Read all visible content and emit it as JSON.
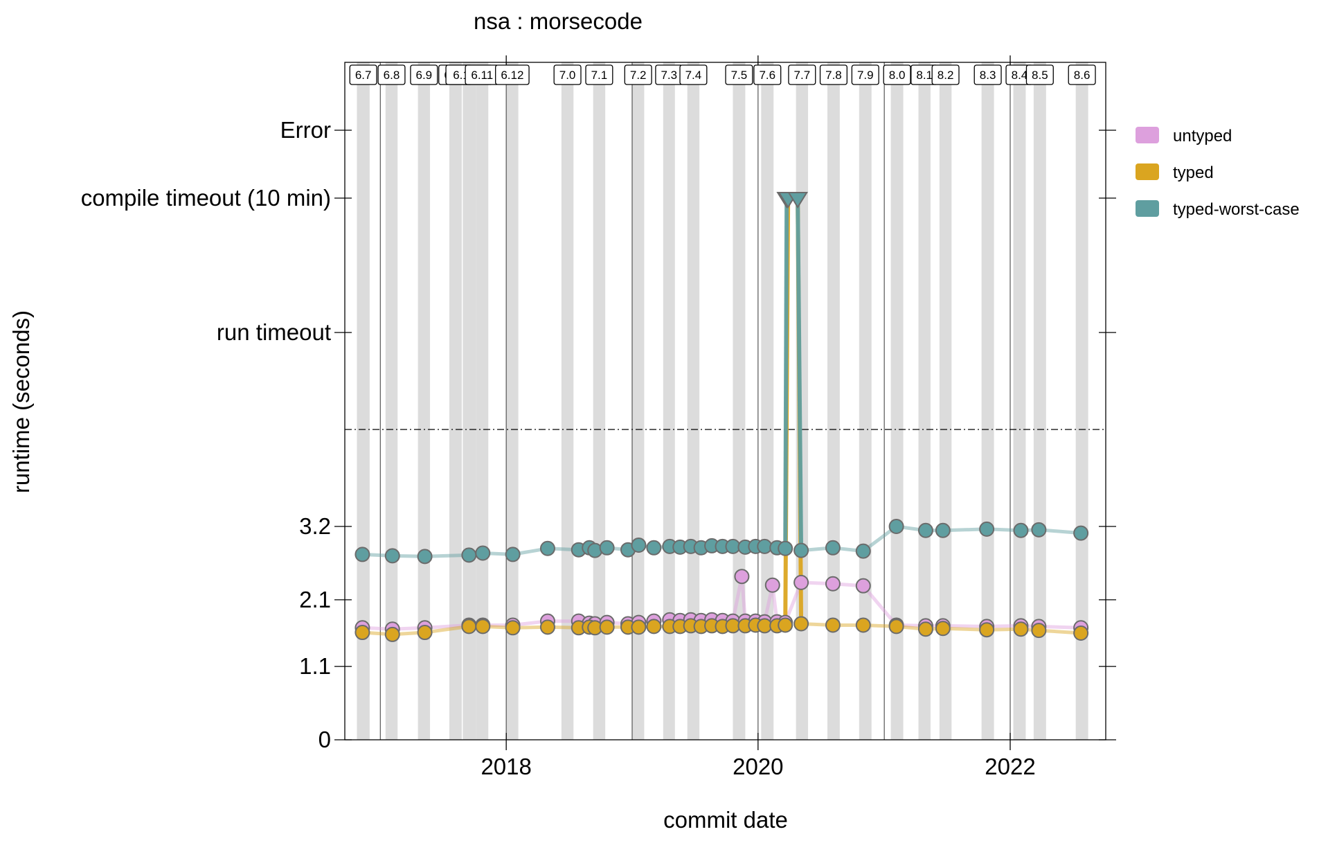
{
  "chart_data": {
    "type": "scatter",
    "title": "nsa : morsecode",
    "xlabel": "commit date",
    "ylabel": "runtime (seconds)",
    "x_range": [
      "2016-09-20",
      "2022-10-05"
    ],
    "x_ticks": [
      {
        "date": "2018-01-01",
        "label": "2018"
      },
      {
        "date": "2020-01-01",
        "label": "2020"
      },
      {
        "date": "2022-01-01",
        "label": "2022"
      }
    ],
    "y_numeric_range": [
      0,
      4.5
    ],
    "y_ticks": [
      "0",
      "1.1",
      "2.1",
      "3.2"
    ],
    "y_special_ticks": [
      "run timeout",
      "compile timeout (10 min)",
      "Error"
    ],
    "grid": false,
    "legend_position": "right",
    "versions": [
      {
        "label": "6.7",
        "start": "2016-10-25",
        "end": "2016-12-01"
      },
      {
        "label": "6.8",
        "start": "2017-01-16",
        "end": "2017-02-20"
      },
      {
        "label": "6.9",
        "start": "2017-04-20",
        "end": "2017-05-25"
      },
      {
        "label": "6.10",
        "start": "2017-07-20",
        "end": "2017-08-25"
      },
      {
        "label": "6.10.1",
        "start": "2017-08-28",
        "end": "2017-10-05"
      },
      {
        "label": "6.11",
        "start": "2017-10-05",
        "end": "2017-11-10"
      },
      {
        "label": "6.12",
        "start": "2018-01-01",
        "end": "2018-02-05"
      },
      {
        "label": "7.0",
        "start": "2018-06-10",
        "end": "2018-07-15"
      },
      {
        "label": "7.1",
        "start": "2018-09-10",
        "end": "2018-10-15"
      },
      {
        "label": "7.2",
        "start": "2019-01-01",
        "end": "2019-02-05"
      },
      {
        "label": "7.3",
        "start": "2019-04-01",
        "end": "2019-05-05"
      },
      {
        "label": "7.4",
        "start": "2019-06-10",
        "end": "2019-07-15"
      },
      {
        "label": "7.5",
        "start": "2019-10-20",
        "end": "2019-11-25"
      },
      {
        "label": "7.6",
        "start": "2020-01-10",
        "end": "2020-02-15"
      },
      {
        "label": "7.7",
        "start": "2020-04-20",
        "end": "2020-05-25"
      },
      {
        "label": "7.8",
        "start": "2020-07-20",
        "end": "2020-08-25"
      },
      {
        "label": "7.9",
        "start": "2020-10-20",
        "end": "2020-11-25"
      },
      {
        "label": "8.0",
        "start": "2021-01-20",
        "end": "2021-02-25"
      },
      {
        "label": "8.1",
        "start": "2021-04-10",
        "end": "2021-05-15"
      },
      {
        "label": "8.2",
        "start": "2021-06-10",
        "end": "2021-07-15"
      },
      {
        "label": "8.3",
        "start": "2021-10-10",
        "end": "2021-11-15"
      },
      {
        "label": "8.4",
        "start": "2022-01-10",
        "end": "2022-02-15"
      },
      {
        "label": "8.5",
        "start": "2022-03-10",
        "end": "2022-04-15"
      },
      {
        "label": "8.6",
        "start": "2022-07-10",
        "end": "2022-08-15"
      }
    ],
    "series": [
      {
        "name": "untyped",
        "color": "#dda0dd",
        "points": [
          {
            "x": "2016-11-10",
            "y": 1.68
          },
          {
            "x": "2017-02-05",
            "y": 1.66
          },
          {
            "x": "2017-05-10",
            "y": 1.68
          },
          {
            "x": "2017-09-15",
            "y": 1.72
          },
          {
            "x": "2017-10-25",
            "y": 1.72
          },
          {
            "x": "2018-01-20",
            "y": 1.72
          },
          {
            "x": "2018-05-01",
            "y": 1.78
          },
          {
            "x": "2018-07-30",
            "y": 1.78
          },
          {
            "x": "2018-08-30",
            "y": 1.75
          },
          {
            "x": "2018-09-15",
            "y": 1.74
          },
          {
            "x": "2018-10-20",
            "y": 1.76
          },
          {
            "x": "2018-12-20",
            "y": 1.74
          },
          {
            "x": "2019-01-20",
            "y": 1.76
          },
          {
            "x": "2019-03-05",
            "y": 1.78
          },
          {
            "x": "2019-04-20",
            "y": 1.8
          },
          {
            "x": "2019-05-20",
            "y": 1.79
          },
          {
            "x": "2019-06-20",
            "y": 1.8
          },
          {
            "x": "2019-07-20",
            "y": 1.79
          },
          {
            "x": "2019-08-20",
            "y": 1.8
          },
          {
            "x": "2019-09-20",
            "y": 1.79
          },
          {
            "x": "2019-10-20",
            "y": 1.78
          },
          {
            "x": "2019-11-15",
            "y": 2.45
          },
          {
            "x": "2019-11-25",
            "y": 1.78
          },
          {
            "x": "2019-12-25",
            "y": 1.78
          },
          {
            "x": "2020-01-20",
            "y": 1.77
          },
          {
            "x": "2020-02-12",
            "y": 2.32
          },
          {
            "x": "2020-02-25",
            "y": 1.77
          },
          {
            "x": "2020-03-20",
            "y": 1.76
          },
          {
            "x": "2020-05-05",
            "y": 2.36
          },
          {
            "x": "2020-08-05",
            "y": 2.34
          },
          {
            "x": "2020-11-01",
            "y": 2.31
          },
          {
            "x": "2021-02-05",
            "y": 1.72
          },
          {
            "x": "2021-05-01",
            "y": 1.71
          },
          {
            "x": "2021-06-20",
            "y": 1.71
          },
          {
            "x": "2021-10-25",
            "y": 1.7
          },
          {
            "x": "2022-02-01",
            "y": 1.71
          },
          {
            "x": "2022-03-25",
            "y": 1.7
          },
          {
            "x": "2022-07-25",
            "y": 1.68
          }
        ]
      },
      {
        "name": "typed",
        "color": "#daa520",
        "points": [
          {
            "x": "2016-11-10",
            "y": 1.61
          },
          {
            "x": "2017-02-05",
            "y": 1.58
          },
          {
            "x": "2017-05-10",
            "y": 1.61
          },
          {
            "x": "2017-09-15",
            "y": 1.7
          },
          {
            "x": "2017-10-25",
            "y": 1.7
          },
          {
            "x": "2018-01-20",
            "y": 1.68
          },
          {
            "x": "2018-05-01",
            "y": 1.69
          },
          {
            "x": "2018-07-30",
            "y": 1.68
          },
          {
            "x": "2018-08-30",
            "y": 1.69
          },
          {
            "x": "2018-09-15",
            "y": 1.68
          },
          {
            "x": "2018-10-20",
            "y": 1.69
          },
          {
            "x": "2018-12-20",
            "y": 1.69
          },
          {
            "x": "2019-01-20",
            "y": 1.69
          },
          {
            "x": "2019-03-05",
            "y": 1.7
          },
          {
            "x": "2019-04-20",
            "y": 1.7
          },
          {
            "x": "2019-05-20",
            "y": 1.7
          },
          {
            "x": "2019-06-20",
            "y": 1.71
          },
          {
            "x": "2019-07-20",
            "y": 1.7
          },
          {
            "x": "2019-08-20",
            "y": 1.71
          },
          {
            "x": "2019-09-20",
            "y": 1.7
          },
          {
            "x": "2019-10-20",
            "y": 1.71
          },
          {
            "x": "2019-11-25",
            "y": 1.71
          },
          {
            "x": "2019-12-25",
            "y": 1.72
          },
          {
            "x": "2020-01-20",
            "y": 1.71
          },
          {
            "x": "2020-02-25",
            "y": 1.71
          },
          {
            "x": "2020-03-20",
            "y": 1.72
          },
          {
            "x": "2020-03-28",
            "y": "compile timeout (10 min)"
          },
          {
            "x": "2020-04-25",
            "y": "compile timeout (10 min)"
          },
          {
            "x": "2020-05-05",
            "y": 1.74
          },
          {
            "x": "2020-08-05",
            "y": 1.72
          },
          {
            "x": "2020-11-01",
            "y": 1.72
          },
          {
            "x": "2021-02-05",
            "y": 1.7
          },
          {
            "x": "2021-05-01",
            "y": 1.66
          },
          {
            "x": "2021-06-20",
            "y": 1.67
          },
          {
            "x": "2021-10-25",
            "y": 1.65
          },
          {
            "x": "2022-02-01",
            "y": 1.66
          },
          {
            "x": "2022-03-25",
            "y": 1.64
          },
          {
            "x": "2022-07-25",
            "y": 1.6
          }
        ]
      },
      {
        "name": "typed-worst-case",
        "color": "#5f9ea0",
        "points": [
          {
            "x": "2016-11-10",
            "y": 2.78
          },
          {
            "x": "2017-02-05",
            "y": 2.76
          },
          {
            "x": "2017-05-10",
            "y": 2.75
          },
          {
            "x": "2017-09-15",
            "y": 2.77
          },
          {
            "x": "2017-10-25",
            "y": 2.8
          },
          {
            "x": "2018-01-20",
            "y": 2.78
          },
          {
            "x": "2018-05-01",
            "y": 2.87
          },
          {
            "x": "2018-07-30",
            "y": 2.85
          },
          {
            "x": "2018-08-30",
            "y": 2.88
          },
          {
            "x": "2018-09-15",
            "y": 2.84
          },
          {
            "x": "2018-10-20",
            "y": 2.88
          },
          {
            "x": "2018-12-20",
            "y": 2.85
          },
          {
            "x": "2019-01-20",
            "y": 2.92
          },
          {
            "x": "2019-03-05",
            "y": 2.88
          },
          {
            "x": "2019-04-20",
            "y": 2.9
          },
          {
            "x": "2019-05-20",
            "y": 2.89
          },
          {
            "x": "2019-06-20",
            "y": 2.9
          },
          {
            "x": "2019-07-20",
            "y": 2.88
          },
          {
            "x": "2019-08-20",
            "y": 2.91
          },
          {
            "x": "2019-09-20",
            "y": 2.9
          },
          {
            "x": "2019-10-20",
            "y": 2.9
          },
          {
            "x": "2019-11-25",
            "y": 2.89
          },
          {
            "x": "2019-12-25",
            "y": 2.9
          },
          {
            "x": "2020-01-20",
            "y": 2.9
          },
          {
            "x": "2020-02-25",
            "y": 2.88
          },
          {
            "x": "2020-03-20",
            "y": 2.87
          },
          {
            "x": "2020-03-24",
            "y": "compile timeout (10 min)"
          },
          {
            "x": "2020-03-28",
            "y": "compile timeout (10 min)"
          },
          {
            "x": "2020-04-25",
            "y": "compile timeout (10 min)"
          },
          {
            "x": "2020-05-05",
            "y": 2.84
          },
          {
            "x": "2020-08-05",
            "y": 2.88
          },
          {
            "x": "2020-11-01",
            "y": 2.83
          },
          {
            "x": "2021-02-05",
            "y": 3.2
          },
          {
            "x": "2021-05-01",
            "y": 3.14
          },
          {
            "x": "2021-06-20",
            "y": 3.14
          },
          {
            "x": "2021-10-25",
            "y": 3.16
          },
          {
            "x": "2022-02-01",
            "y": 3.14
          },
          {
            "x": "2022-03-25",
            "y": 3.15
          },
          {
            "x": "2022-07-25",
            "y": 3.1
          }
        ]
      }
    ]
  }
}
